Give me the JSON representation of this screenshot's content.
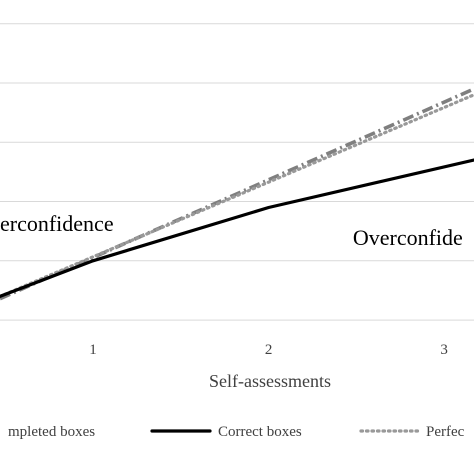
{
  "chart_data": {
    "type": "line",
    "xlabel": "Self-assessments",
    "x_ticks": [
      1,
      2,
      3
    ],
    "xlim": [
      0.47,
      3.17
    ],
    "ylim": [
      0.45,
      3.2
    ],
    "y_gridlines": [
      0.5,
      1.0,
      1.5,
      2.0,
      2.5,
      3.0
    ],
    "grid": true,
    "legend_position": "bottom",
    "series": [
      {
        "name": "Correct boxes",
        "style": "solid",
        "color": "#000000",
        "x": [
          0.47,
          1.0,
          2.0,
          3.17
        ],
        "y": [
          0.7,
          1.0,
          1.45,
          1.85
        ]
      },
      {
        "name": "Perfec",
        "style": "dotted",
        "color": "#999999",
        "x": [
          0.47,
          3.17
        ],
        "y": [
          0.7,
          2.4
        ]
      },
      {
        "name": "mpleted boxes",
        "style": "dash-dot",
        "color": "#7f7f7f",
        "x": [
          0.47,
          3.17
        ],
        "y": [
          0.68,
          2.45
        ]
      }
    ],
    "annotations": [
      {
        "text": "erconfidence",
        "x": 0.47,
        "y": 1.32
      },
      {
        "text": "Overconfide",
        "x": 2.48,
        "y": 1.2
      }
    ]
  }
}
